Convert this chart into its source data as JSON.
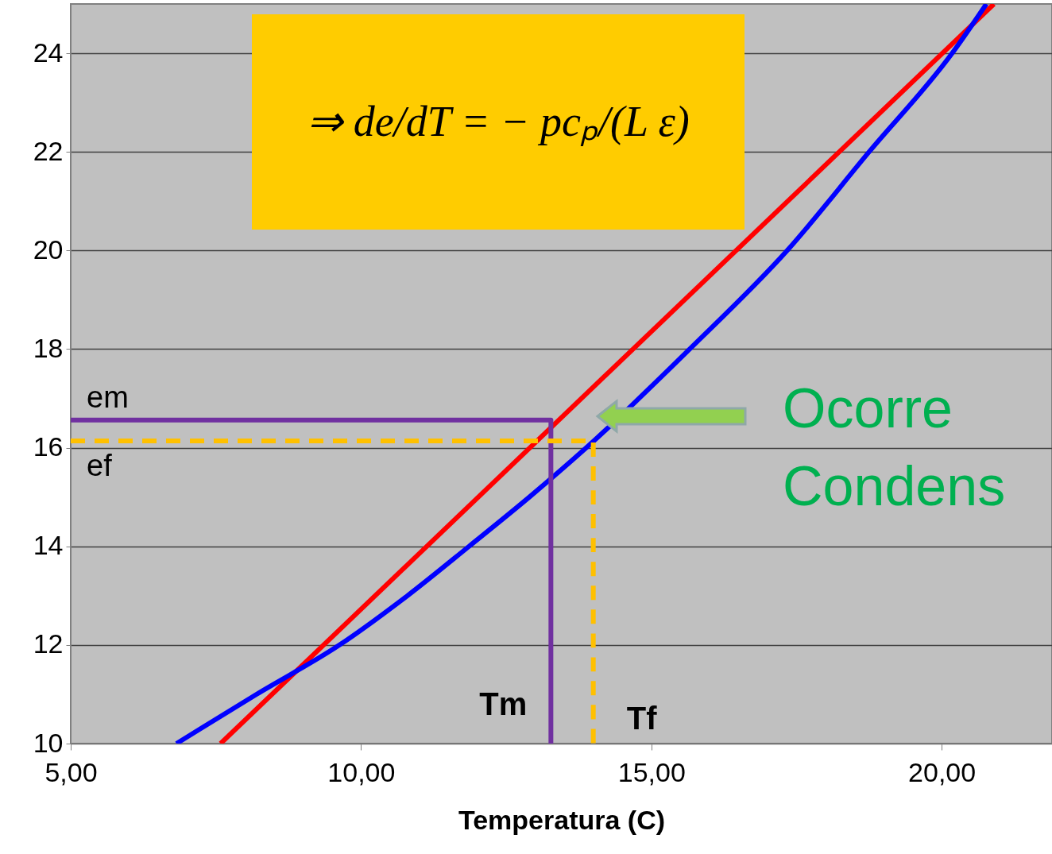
{
  "chart_data": {
    "type": "line",
    "xlabel": "Temperatura (C)",
    "xlim": [
      5,
      21.9
    ],
    "ylim": [
      10,
      25
    ],
    "xticks": [
      {
        "value": 5,
        "label": "5,00"
      },
      {
        "value": 10,
        "label": "10,00"
      },
      {
        "value": 15,
        "label": "15,00"
      },
      {
        "value": 20,
        "label": "20,00"
      }
    ],
    "yticks": [
      10,
      12,
      14,
      16,
      18,
      20,
      22,
      24
    ],
    "grid": "y",
    "series": [
      {
        "color": "#ff0000",
        "x": [
          7.58,
          20.9
        ],
        "values": [
          10,
          25
        ]
      },
      {
        "color": "#0000ff",
        "x": [
          6.82,
          8.2,
          9.63,
          10.8,
          11.86,
          12.9,
          13.88,
          15.66,
          17.34,
          18.75,
          20.18,
          20.77
        ],
        "values": [
          10,
          11,
          12,
          13,
          14,
          15,
          16,
          18,
          20,
          22,
          24,
          25
        ]
      },
      {
        "color": "#7030a0",
        "x": [
          5,
          13.27,
          13.27
        ],
        "values": [
          16.56,
          16.56,
          10
        ]
      },
      {
        "color": "#ffc000",
        "line_style": "dashed",
        "x": [
          5,
          14.0,
          14.0
        ],
        "values": [
          16.14,
          16.14,
          10
        ]
      }
    ],
    "annotations": [
      "⇒ de/dT = − pcₚ/(L ε)",
      "Ocorre\nCondens",
      {
        "text": "em",
        "y": 16.56
      },
      {
        "text": "ef",
        "y": 16.14
      },
      {
        "text": "Tm",
        "x": 13.27
      },
      {
        "text": "Tf",
        "x": 14.0
      }
    ]
  }
}
